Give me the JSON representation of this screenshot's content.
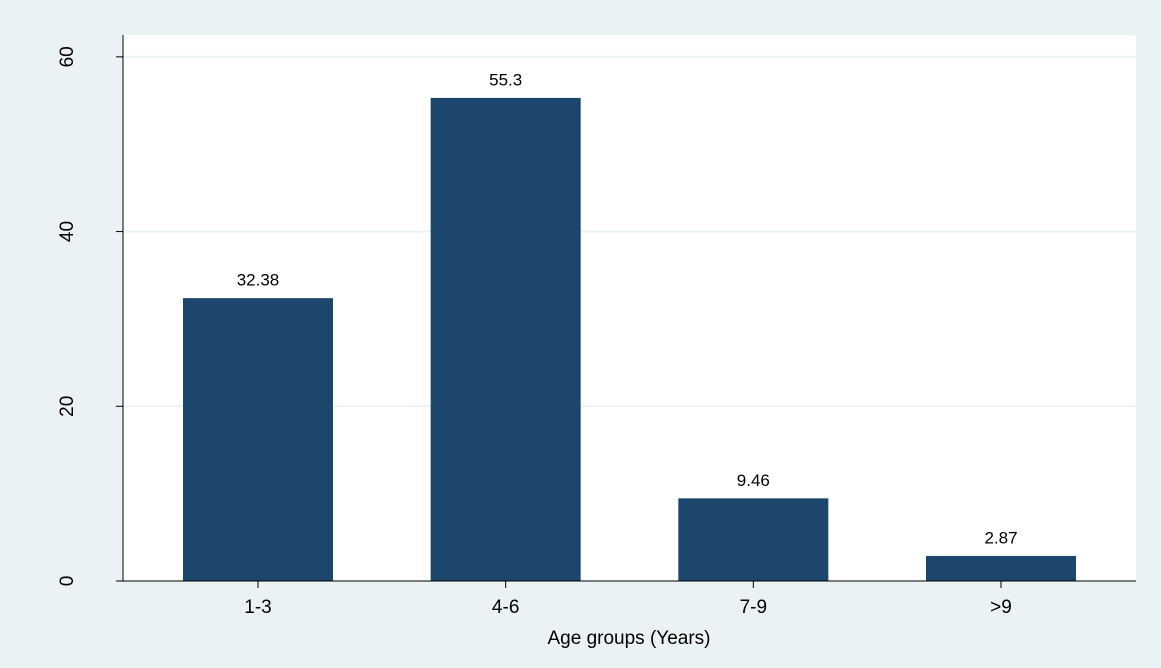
{
  "chart_data": {
    "type": "bar",
    "x_label": "Age groups (Years)",
    "categories": [
      "1-3",
      "4-6",
      "7-9",
      ">9"
    ],
    "values": [
      32.38,
      55.3,
      9.46,
      2.87
    ],
    "color": "#1c466c",
    "ylim": [
      0,
      62.5
    ],
    "yticks": [
      0,
      20,
      40,
      60
    ],
    "grid": true
  }
}
